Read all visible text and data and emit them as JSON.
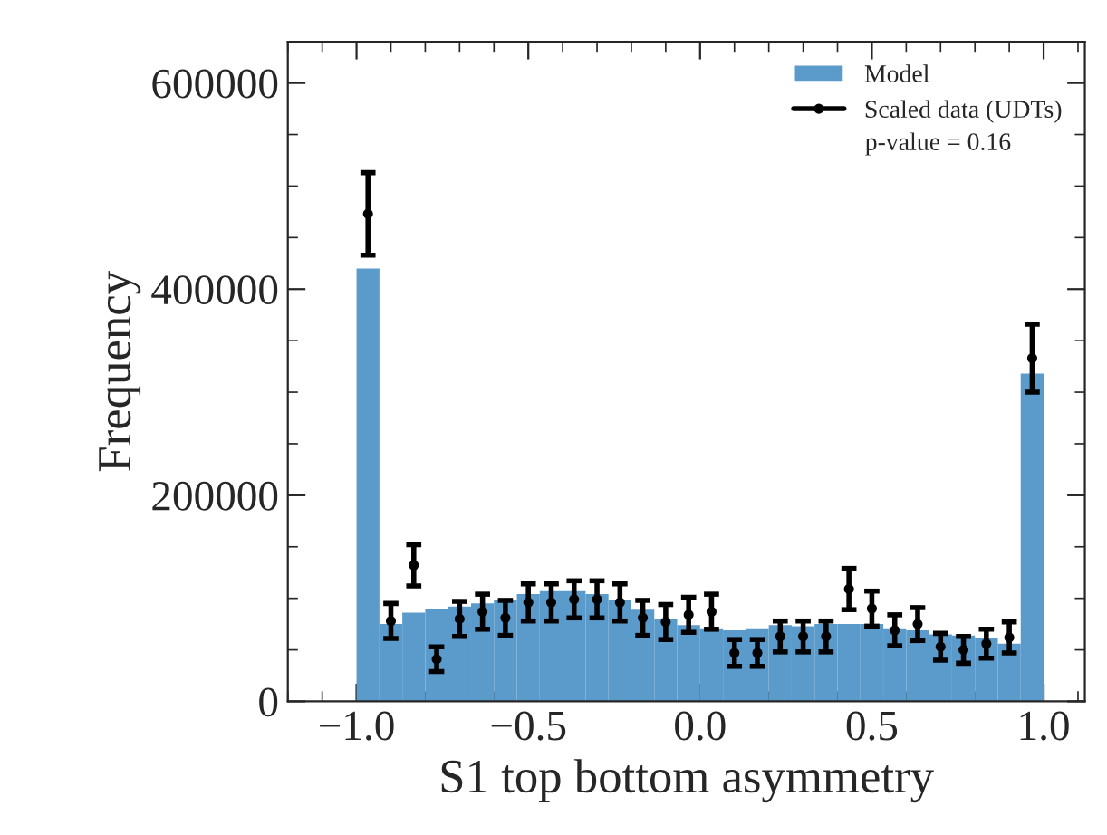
{
  "chart_data": {
    "type": "histogram",
    "xlabel": "S1 top bottom asymmetry",
    "ylabel": "Frequency",
    "bins": [
      -1,
      -0.9333,
      -0.8667,
      -0.8,
      -0.7333,
      -0.6667,
      -0.6,
      -0.5333,
      -0.4667,
      -0.4,
      -0.3333,
      -0.2667,
      -0.2,
      -0.1333,
      -0.0667,
      0,
      0.0667,
      0.1333,
      0.2,
      0.2667,
      0.3333,
      0.4,
      0.4667,
      0.5333,
      0.6,
      0.6667,
      0.7333,
      0.8,
      0.8667,
      0.9333,
      1
    ],
    "series": [
      {
        "name": "Model",
        "color": "#5b9bcc",
        "values": [
          420000,
          75000,
          86000,
          90000,
          92000,
          95000,
          98000,
          104000,
          107000,
          107000,
          104000,
          98000,
          89000,
          80000,
          74000,
          71000,
          69000,
          71000,
          74000,
          73000,
          75000,
          75000,
          75000,
          71000,
          69000,
          65000,
          64000,
          62000,
          56000,
          318000
        ]
      },
      {
        "name": "Scaled data (UDTs)",
        "type": "scatter",
        "color": "#000000",
        "x": [
          -0.9667,
          -0.9,
          -0.8333,
          -0.7667,
          -0.7,
          -0.6333,
          -0.5667,
          -0.5,
          -0.4333,
          -0.3667,
          -0.3,
          -0.2333,
          -0.1667,
          -0.1,
          -0.0333,
          0.0333,
          0.1,
          0.1667,
          0.2333,
          0.3,
          0.3667,
          0.4333,
          0.5,
          0.5667,
          0.6333,
          0.7,
          0.7667,
          0.8333,
          0.9,
          0.9667
        ],
        "values": [
          473000,
          78000,
          132000,
          41000,
          80000,
          87000,
          81000,
          96000,
          96000,
          99000,
          99000,
          96000,
          81000,
          77000,
          84000,
          87000,
          47000,
          47000,
          63000,
          63000,
          63000,
          109000,
          90000,
          69000,
          75000,
          53000,
          50000,
          56000,
          62000,
          333000
        ],
        "errors": [
          40000,
          17000,
          20000,
          12000,
          17000,
          17000,
          17000,
          18000,
          18000,
          18000,
          18000,
          18000,
          17000,
          17000,
          17000,
          17000,
          13000,
          13000,
          15000,
          15000,
          15000,
          20000,
          17000,
          15000,
          16000,
          13000,
          13000,
          14000,
          15000,
          33000
        ]
      }
    ],
    "annotations": [
      "p-value = 0.16"
    ],
    "xlim": [
      -1.2,
      1.12
    ],
    "ylim": [
      0,
      640000
    ],
    "xticks": [
      {
        "value": -1,
        "label": "−1.0"
      },
      {
        "value": -0.5,
        "label": "−0.5"
      },
      {
        "value": 0,
        "label": "0.0"
      },
      {
        "value": 0.5,
        "label": "0.5"
      },
      {
        "value": 1,
        "label": "1.0"
      }
    ],
    "yticks": [
      0,
      200000,
      400000,
      600000
    ],
    "legend": "top right"
  }
}
